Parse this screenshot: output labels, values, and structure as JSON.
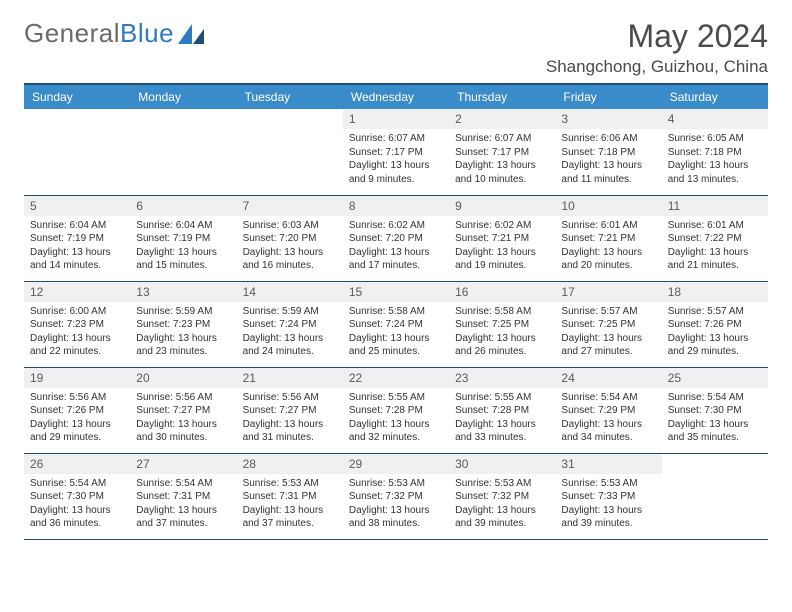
{
  "logo": {
    "text1": "General",
    "text2": "Blue"
  },
  "title": "May 2024",
  "location": "Shangchong, Guizhou, China",
  "colors": {
    "header_bg": "#3a8bc9",
    "header_text": "#ffffff",
    "rule": "#1d4e78",
    "daynum_bg": "#eef0f2",
    "logo_gray": "#6a6a6a",
    "logo_blue": "#2e7cc0"
  },
  "dayNames": [
    "Sunday",
    "Monday",
    "Tuesday",
    "Wednesday",
    "Thursday",
    "Friday",
    "Saturday"
  ],
  "labels": {
    "sunrise": "Sunrise:",
    "sunset": "Sunset:",
    "daylight": "Daylight:"
  },
  "weeks": [
    [
      null,
      null,
      null,
      {
        "d": "1",
        "sr": "6:07 AM",
        "ss": "7:17 PM",
        "dl": "13 hours and 9 minutes."
      },
      {
        "d": "2",
        "sr": "6:07 AM",
        "ss": "7:17 PM",
        "dl": "13 hours and 10 minutes."
      },
      {
        "d": "3",
        "sr": "6:06 AM",
        "ss": "7:18 PM",
        "dl": "13 hours and 11 minutes."
      },
      {
        "d": "4",
        "sr": "6:05 AM",
        "ss": "7:18 PM",
        "dl": "13 hours and 13 minutes."
      }
    ],
    [
      {
        "d": "5",
        "sr": "6:04 AM",
        "ss": "7:19 PM",
        "dl": "13 hours and 14 minutes."
      },
      {
        "d": "6",
        "sr": "6:04 AM",
        "ss": "7:19 PM",
        "dl": "13 hours and 15 minutes."
      },
      {
        "d": "7",
        "sr": "6:03 AM",
        "ss": "7:20 PM",
        "dl": "13 hours and 16 minutes."
      },
      {
        "d": "8",
        "sr": "6:02 AM",
        "ss": "7:20 PM",
        "dl": "13 hours and 17 minutes."
      },
      {
        "d": "9",
        "sr": "6:02 AM",
        "ss": "7:21 PM",
        "dl": "13 hours and 19 minutes."
      },
      {
        "d": "10",
        "sr": "6:01 AM",
        "ss": "7:21 PM",
        "dl": "13 hours and 20 minutes."
      },
      {
        "d": "11",
        "sr": "6:01 AM",
        "ss": "7:22 PM",
        "dl": "13 hours and 21 minutes."
      }
    ],
    [
      {
        "d": "12",
        "sr": "6:00 AM",
        "ss": "7:23 PM",
        "dl": "13 hours and 22 minutes."
      },
      {
        "d": "13",
        "sr": "5:59 AM",
        "ss": "7:23 PM",
        "dl": "13 hours and 23 minutes."
      },
      {
        "d": "14",
        "sr": "5:59 AM",
        "ss": "7:24 PM",
        "dl": "13 hours and 24 minutes."
      },
      {
        "d": "15",
        "sr": "5:58 AM",
        "ss": "7:24 PM",
        "dl": "13 hours and 25 minutes."
      },
      {
        "d": "16",
        "sr": "5:58 AM",
        "ss": "7:25 PM",
        "dl": "13 hours and 26 minutes."
      },
      {
        "d": "17",
        "sr": "5:57 AM",
        "ss": "7:25 PM",
        "dl": "13 hours and 27 minutes."
      },
      {
        "d": "18",
        "sr": "5:57 AM",
        "ss": "7:26 PM",
        "dl": "13 hours and 29 minutes."
      }
    ],
    [
      {
        "d": "19",
        "sr": "5:56 AM",
        "ss": "7:26 PM",
        "dl": "13 hours and 29 minutes."
      },
      {
        "d": "20",
        "sr": "5:56 AM",
        "ss": "7:27 PM",
        "dl": "13 hours and 30 minutes."
      },
      {
        "d": "21",
        "sr": "5:56 AM",
        "ss": "7:27 PM",
        "dl": "13 hours and 31 minutes."
      },
      {
        "d": "22",
        "sr": "5:55 AM",
        "ss": "7:28 PM",
        "dl": "13 hours and 32 minutes."
      },
      {
        "d": "23",
        "sr": "5:55 AM",
        "ss": "7:28 PM",
        "dl": "13 hours and 33 minutes."
      },
      {
        "d": "24",
        "sr": "5:54 AM",
        "ss": "7:29 PM",
        "dl": "13 hours and 34 minutes."
      },
      {
        "d": "25",
        "sr": "5:54 AM",
        "ss": "7:30 PM",
        "dl": "13 hours and 35 minutes."
      }
    ],
    [
      {
        "d": "26",
        "sr": "5:54 AM",
        "ss": "7:30 PM",
        "dl": "13 hours and 36 minutes."
      },
      {
        "d": "27",
        "sr": "5:54 AM",
        "ss": "7:31 PM",
        "dl": "13 hours and 37 minutes."
      },
      {
        "d": "28",
        "sr": "5:53 AM",
        "ss": "7:31 PM",
        "dl": "13 hours and 37 minutes."
      },
      {
        "d": "29",
        "sr": "5:53 AM",
        "ss": "7:32 PM",
        "dl": "13 hours and 38 minutes."
      },
      {
        "d": "30",
        "sr": "5:53 AM",
        "ss": "7:32 PM",
        "dl": "13 hours and 39 minutes."
      },
      {
        "d": "31",
        "sr": "5:53 AM",
        "ss": "7:33 PM",
        "dl": "13 hours and 39 minutes."
      },
      null
    ]
  ]
}
